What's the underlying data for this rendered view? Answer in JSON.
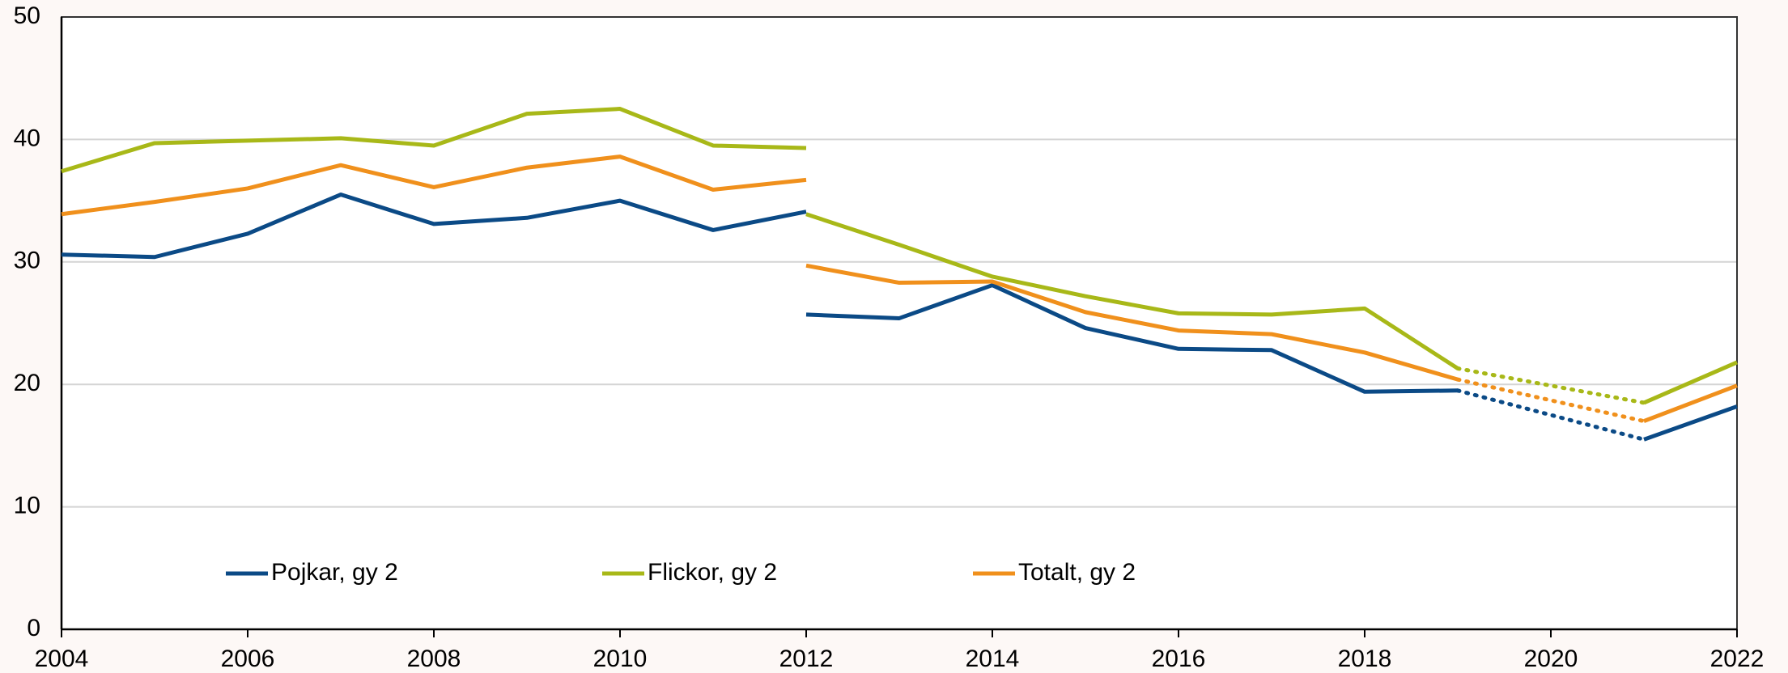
{
  "chart_data": {
    "type": "line",
    "x": [
      2004,
      2005,
      2006,
      2007,
      2008,
      2009,
      2010,
      2011,
      2012,
      2012,
      2013,
      2014,
      2015,
      2016,
      2017,
      2018,
      2019,
      2021,
      2022
    ],
    "series": [
      {
        "name": "Pojkar, gy 2",
        "color": "#0b4a86",
        "values": [
          30.6,
          30.4,
          32.3,
          35.5,
          33.1,
          33.6,
          35.0,
          32.6,
          34.1,
          25.7,
          25.4,
          28.1,
          24.6,
          22.9,
          22.8,
          19.4,
          19.5,
          15.5,
          18.2
        ]
      },
      {
        "name": "Flickor, gy 2",
        "color": "#a8b818",
        "values": [
          37.4,
          39.7,
          39.9,
          40.1,
          39.5,
          42.1,
          42.5,
          39.5,
          39.3,
          33.9,
          31.4,
          28.8,
          27.2,
          25.8,
          25.7,
          26.2,
          21.3,
          18.5,
          21.8
        ]
      },
      {
        "name": "Totalt, gy 2",
        "color": "#f0901c",
        "values": [
          33.9,
          34.9,
          36.0,
          37.9,
          36.1,
          37.7,
          38.6,
          35.9,
          36.7,
          29.7,
          28.3,
          28.4,
          25.9,
          24.4,
          24.1,
          22.6,
          20.4,
          17.0,
          19.9
        ]
      }
    ],
    "dotted_between": [
      2019,
      2021
    ],
    "xlim": [
      2004,
      2022
    ],
    "xticks": [
      2004,
      2006,
      2008,
      2010,
      2012,
      2014,
      2016,
      2018,
      2020,
      2022
    ],
    "ylim": [
      0,
      50
    ],
    "yticks": [
      0,
      10,
      20,
      30,
      40,
      50
    ],
    "grid": true
  }
}
